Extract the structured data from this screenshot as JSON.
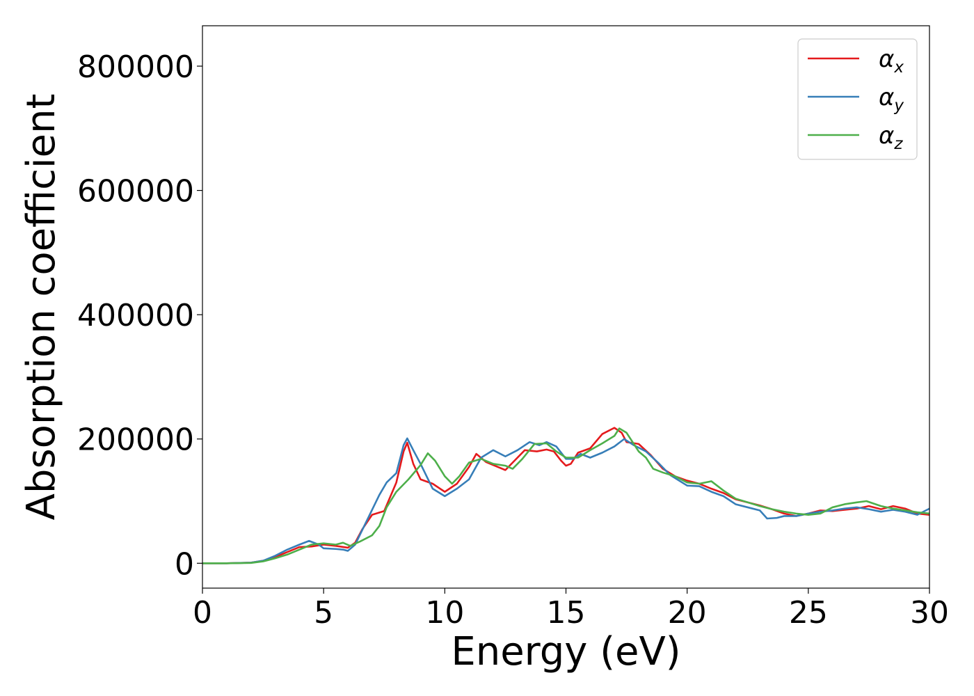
{
  "chart_data": {
    "type": "line",
    "title": "",
    "xlabel": "Energy (eV)",
    "ylabel": "Absorption coefficient",
    "xlim": [
      0,
      30
    ],
    "ylim": [
      -40000,
      865000
    ],
    "xticks": [
      0,
      5,
      10,
      15,
      20,
      25,
      30
    ],
    "xtick_labels": [
      "0",
      "5",
      "10",
      "15",
      "20",
      "25",
      "30"
    ],
    "yticks": [
      0,
      200000,
      400000,
      600000,
      800000
    ],
    "ytick_labels": [
      "0",
      "200000",
      "400000",
      "600000",
      "800000"
    ],
    "grid": false,
    "legend_position": "top-right",
    "series": [
      {
        "name": "αx",
        "symbol": "α",
        "subscript": "x",
        "color": "#e41a1c",
        "points": [
          [
            0,
            0
          ],
          [
            1,
            0
          ],
          [
            2,
            1000
          ],
          [
            2.5,
            4000
          ],
          [
            3,
            10000
          ],
          [
            3.5,
            18000
          ],
          [
            4,
            26000
          ],
          [
            4.5,
            27000
          ],
          [
            5,
            30000
          ],
          [
            5.5,
            28000
          ],
          [
            6,
            25000
          ],
          [
            6.3,
            33000
          ],
          [
            6.6,
            55000
          ],
          [
            7,
            78000
          ],
          [
            7.5,
            84000
          ],
          [
            8,
            130000
          ],
          [
            8.3,
            180000
          ],
          [
            8.45,
            194000
          ],
          [
            8.7,
            160000
          ],
          [
            9,
            135000
          ],
          [
            9.5,
            128000
          ],
          [
            10,
            115000
          ],
          [
            10.5,
            128000
          ],
          [
            11,
            155000
          ],
          [
            11.3,
            176000
          ],
          [
            11.7,
            163000
          ],
          [
            12,
            158000
          ],
          [
            12.5,
            150000
          ],
          [
            13,
            170000
          ],
          [
            13.3,
            182000
          ],
          [
            13.8,
            180000
          ],
          [
            14.2,
            183000
          ],
          [
            14.5,
            180000
          ],
          [
            14.8,
            165000
          ],
          [
            15,
            157000
          ],
          [
            15.2,
            160000
          ],
          [
            15.5,
            178000
          ],
          [
            16,
            185000
          ],
          [
            16.5,
            208000
          ],
          [
            17,
            218000
          ],
          [
            17.3,
            210000
          ],
          [
            17.5,
            195000
          ],
          [
            18,
            192000
          ],
          [
            18.5,
            174000
          ],
          [
            19,
            152000
          ],
          [
            19.5,
            140000
          ],
          [
            20,
            133000
          ],
          [
            20.5,
            128000
          ],
          [
            21,
            120000
          ],
          [
            21.5,
            113000
          ],
          [
            22,
            103000
          ],
          [
            23,
            93000
          ],
          [
            23.5,
            87000
          ],
          [
            24,
            80000
          ],
          [
            24.5,
            76000
          ],
          [
            25,
            80000
          ],
          [
            25.5,
            85000
          ],
          [
            26,
            84000
          ],
          [
            26.5,
            86000
          ],
          [
            27,
            88000
          ],
          [
            27.5,
            92000
          ],
          [
            28,
            87000
          ],
          [
            28.5,
            92000
          ],
          [
            29,
            88000
          ],
          [
            29.5,
            80000
          ],
          [
            30,
            78000
          ]
        ]
      },
      {
        "name": "αy",
        "symbol": "α",
        "subscript": "y",
        "color": "#377eb8",
        "points": [
          [
            0,
            0
          ],
          [
            1,
            0
          ],
          [
            2,
            1000
          ],
          [
            2.5,
            4000
          ],
          [
            3,
            12000
          ],
          [
            3.5,
            22000
          ],
          [
            4,
            30000
          ],
          [
            4.4,
            36000
          ],
          [
            4.8,
            30000
          ],
          [
            5,
            24000
          ],
          [
            5.5,
            23000
          ],
          [
            5.8,
            22000
          ],
          [
            6,
            20000
          ],
          [
            6.3,
            30000
          ],
          [
            6.8,
            70000
          ],
          [
            7.3,
            110000
          ],
          [
            7.6,
            130000
          ],
          [
            8,
            145000
          ],
          [
            8.3,
            190000
          ],
          [
            8.45,
            201000
          ],
          [
            8.7,
            182000
          ],
          [
            9,
            160000
          ],
          [
            9.5,
            120000
          ],
          [
            10,
            108000
          ],
          [
            10.5,
            120000
          ],
          [
            11,
            135000
          ],
          [
            11.5,
            170000
          ],
          [
            12,
            182000
          ],
          [
            12.5,
            172000
          ],
          [
            13,
            182000
          ],
          [
            13.5,
            195000
          ],
          [
            13.9,
            190000
          ],
          [
            14.2,
            195000
          ],
          [
            14.6,
            188000
          ],
          [
            15,
            168000
          ],
          [
            15.3,
            168000
          ],
          [
            15.6,
            176000
          ],
          [
            16,
            170000
          ],
          [
            16.5,
            178000
          ],
          [
            17,
            188000
          ],
          [
            17.4,
            200000
          ],
          [
            17.8,
            190000
          ],
          [
            18.3,
            180000
          ],
          [
            18.8,
            162000
          ],
          [
            19.3,
            142000
          ],
          [
            20,
            125000
          ],
          [
            20.5,
            124000
          ],
          [
            21,
            115000
          ],
          [
            21.5,
            108000
          ],
          [
            22,
            95000
          ],
          [
            22.5,
            90000
          ],
          [
            23,
            85000
          ],
          [
            23.3,
            72000
          ],
          [
            23.7,
            73000
          ],
          [
            24,
            76000
          ],
          [
            24.5,
            76000
          ],
          [
            25,
            80000
          ],
          [
            25.5,
            83000
          ],
          [
            26,
            85000
          ],
          [
            26.5,
            88000
          ],
          [
            27,
            90000
          ],
          [
            27.5,
            87000
          ],
          [
            28,
            83000
          ],
          [
            28.5,
            86000
          ],
          [
            29,
            83000
          ],
          [
            29.5,
            78000
          ],
          [
            30,
            88000
          ]
        ]
      },
      {
        "name": "αz",
        "symbol": "α",
        "subscript": "z",
        "color": "#4daf4a",
        "points": [
          [
            0,
            0
          ],
          [
            1,
            0
          ],
          [
            2,
            500
          ],
          [
            2.5,
            3000
          ],
          [
            3,
            8000
          ],
          [
            3.5,
            14000
          ],
          [
            4,
            22000
          ],
          [
            4.5,
            30000
          ],
          [
            5,
            32000
          ],
          [
            5.5,
            30000
          ],
          [
            5.8,
            33000
          ],
          [
            6.1,
            28000
          ],
          [
            6.5,
            35000
          ],
          [
            7,
            45000
          ],
          [
            7.3,
            60000
          ],
          [
            7.6,
            90000
          ],
          [
            8,
            115000
          ],
          [
            8.5,
            135000
          ],
          [
            9,
            158000
          ],
          [
            9.3,
            177000
          ],
          [
            9.6,
            165000
          ],
          [
            10,
            140000
          ],
          [
            10.3,
            128000
          ],
          [
            10.6,
            140000
          ],
          [
            11,
            162000
          ],
          [
            11.5,
            168000
          ],
          [
            12,
            160000
          ],
          [
            12.5,
            157000
          ],
          [
            12.8,
            152000
          ],
          [
            13.2,
            168000
          ],
          [
            13.7,
            192000
          ],
          [
            14.2,
            193000
          ],
          [
            14.6,
            180000
          ],
          [
            15,
            170000
          ],
          [
            15.5,
            170000
          ],
          [
            16,
            182000
          ],
          [
            16.5,
            193000
          ],
          [
            17,
            205000
          ],
          [
            17.2,
            217000
          ],
          [
            17.5,
            210000
          ],
          [
            18,
            180000
          ],
          [
            18.3,
            170000
          ],
          [
            18.6,
            152000
          ],
          [
            19,
            146000
          ],
          [
            19.5,
            140000
          ],
          [
            20,
            130000
          ],
          [
            20.5,
            128000
          ],
          [
            21,
            132000
          ],
          [
            21.5,
            117000
          ],
          [
            22,
            104000
          ],
          [
            22.5,
            98000
          ],
          [
            23,
            92000
          ],
          [
            23.5,
            87000
          ],
          [
            24,
            83000
          ],
          [
            24.5,
            80000
          ],
          [
            25,
            78000
          ],
          [
            25.5,
            80000
          ],
          [
            26,
            90000
          ],
          [
            26.5,
            95000
          ],
          [
            27,
            98000
          ],
          [
            27.4,
            100000
          ],
          [
            28,
            92000
          ],
          [
            28.5,
            88000
          ],
          [
            29,
            85000
          ],
          [
            29.5,
            82000
          ],
          [
            30,
            80000
          ]
        ]
      }
    ]
  }
}
